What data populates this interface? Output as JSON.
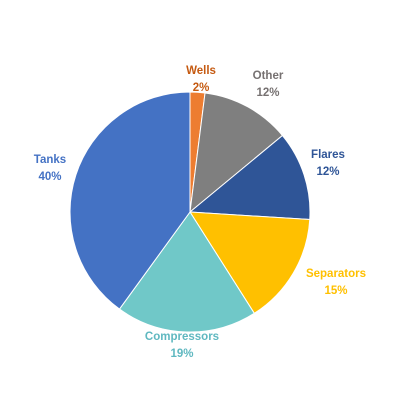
{
  "chart_data": {
    "type": "pie",
    "title": "",
    "start_angle_deg": 0,
    "direction": "clockwise",
    "slices": [
      {
        "label": "Wells",
        "value": 2,
        "value_label": "2%",
        "color": "#ED7D31",
        "label_color": "#C55A11",
        "label_weight": "bold"
      },
      {
        "label": "Other",
        "value": 12,
        "value_label": "12%",
        "color": "#7F7F7F",
        "label_color": "#767171",
        "label_weight": "bold"
      },
      {
        "label": "Flares",
        "value": 12,
        "value_label": "12%",
        "color": "#2F5597",
        "label_color": "#2F5597",
        "label_weight": "bold"
      },
      {
        "label": "Separators",
        "value": 15,
        "value_label": "15%",
        "color": "#FFC000",
        "label_color": "#FFC000",
        "label_weight": "bold"
      },
      {
        "label": "Compressors",
        "value": 19,
        "value_label": "19%",
        "color": "#70C8C8",
        "label_color": "#5FB8C0",
        "label_weight": "bold"
      },
      {
        "label": "Tanks",
        "value": 40,
        "value_label": "40%",
        "color": "#4472C4",
        "label_color": "#4472C4",
        "label_weight": "bold"
      }
    ],
    "legend": "none"
  }
}
